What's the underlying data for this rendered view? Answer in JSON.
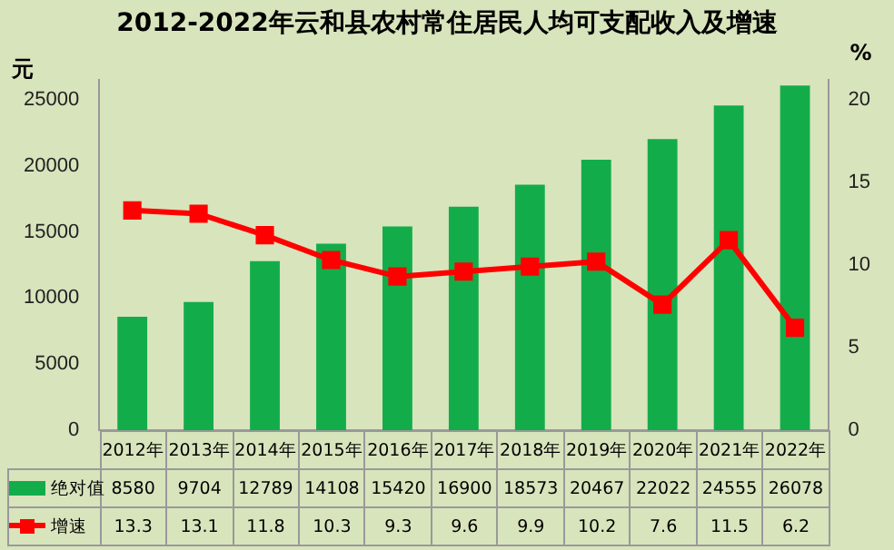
{
  "chart_data": {
    "type": "bar",
    "title": "2012-2022年云和县农村常住居民人均可支配收入及增速",
    "ylabel": "元",
    "y2label": "%",
    "categories": [
      "2012年",
      "2013年",
      "2014年",
      "2015年",
      "2016年",
      "2017年",
      "2018年",
      "2019年",
      "2020年",
      "2021年",
      "2022年"
    ],
    "series": [
      {
        "name": "绝对值",
        "color": "#12ad4a",
        "values": [
          8580,
          9704,
          12789,
          14108,
          15420,
          16900,
          18573,
          20467,
          22022,
          24555,
          26078
        ]
      },
      {
        "name": "增速",
        "type": "line",
        "axis": "y2",
        "color": "#ff0000",
        "marker": "square",
        "values": [
          13.3,
          13.1,
          11.8,
          10.3,
          9.3,
          9.6,
          9.9,
          10.2,
          7.6,
          11.5,
          6.2
        ]
      }
    ],
    "ylim": [
      0,
      26500
    ],
    "yticks": [
      0,
      5000,
      10000,
      15000,
      20000,
      25000
    ],
    "y2lim": [
      0,
      21.2
    ],
    "y2ticks": [
      0,
      5,
      10,
      15,
      20
    ],
    "grid": false,
    "legend": "bottom",
    "data_labels": true
  }
}
